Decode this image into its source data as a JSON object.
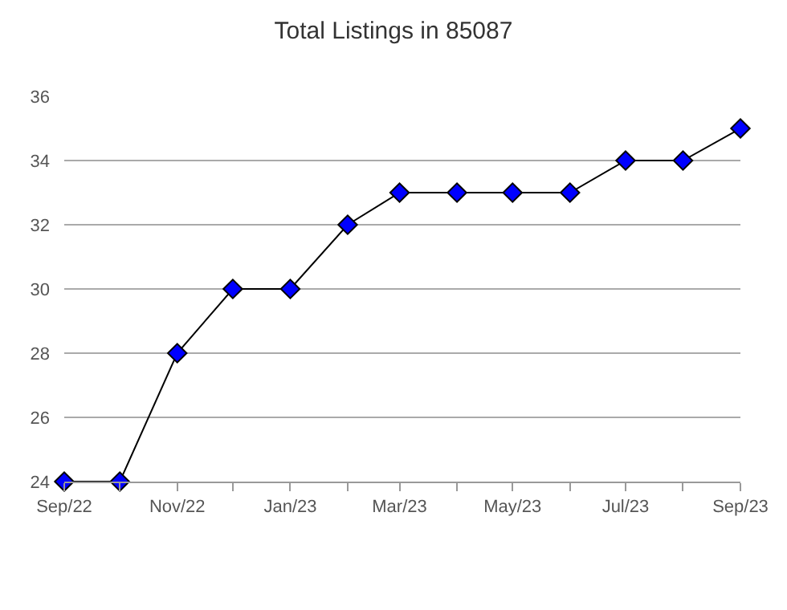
{
  "chart_data": {
    "type": "line",
    "title": "Total Listings in 85087",
    "x": [
      "2022-09",
      "2022-10",
      "2022-11",
      "2022-12",
      "2023-01",
      "2023-02",
      "2023-03",
      "2023-04",
      "2023-05",
      "2023-06",
      "2023-07",
      "2023-08",
      "2023-09"
    ],
    "series": [
      {
        "color": "#0000ff",
        "values": [
          24,
          24,
          28,
          30,
          30,
          32,
          33,
          33,
          33,
          33,
          34,
          34,
          35
        ]
      }
    ],
    "xlim": [
      "2022-09",
      "2023-09"
    ],
    "xticks": [
      {
        "value": "2022-09",
        "label": "Sep/22"
      },
      {
        "value": "2022-10",
        "label": null
      },
      {
        "value": "2022-11",
        "label": "Nov/22"
      },
      {
        "value": "2022-12",
        "label": null
      },
      {
        "value": "2023-01",
        "label": "Jan/23"
      },
      {
        "value": "2023-02",
        "label": null
      },
      {
        "value": "2023-03",
        "label": "Mar/23"
      },
      {
        "value": "2023-04",
        "label": null
      },
      {
        "value": "2023-05",
        "label": "May/23"
      },
      {
        "value": "2023-06",
        "label": null
      },
      {
        "value": "2023-07",
        "label": "Jul/23"
      },
      {
        "value": "2023-08",
        "label": null
      },
      {
        "value": "2023-09",
        "label": "Sep/23"
      }
    ],
    "ylim": [
      24,
      36
    ],
    "yticks": [
      24,
      26,
      28,
      30,
      32,
      34,
      36
    ],
    "grid": "y",
    "marker": "diamond",
    "line_style": "solid",
    "legend": false
  }
}
